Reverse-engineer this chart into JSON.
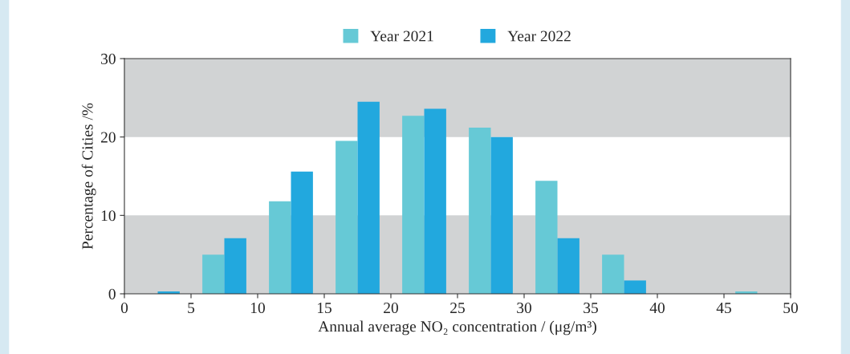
{
  "chart_data": {
    "type": "bar",
    "xlabel": "Annual average NO₂ concentration / (μg/m³)",
    "ylabel": "Percentage of Cities /%",
    "x": [
      2.5,
      7.5,
      12.5,
      17.5,
      22.5,
      27.5,
      32.5,
      37.5,
      42.5,
      47.5
    ],
    "series": [
      {
        "name": "Year 2021",
        "color": "#66c9d6",
        "values": [
          0,
          5.0,
          11.8,
          19.5,
          22.7,
          21.2,
          14.4,
          5.0,
          0,
          0.3
        ]
      },
      {
        "name": "Year 2022",
        "color": "#22a8de",
        "values": [
          0.3,
          7.1,
          15.6,
          24.5,
          23.6,
          20.0,
          7.1,
          1.7,
          0,
          0
        ]
      }
    ],
    "xlim": [
      0,
      50
    ],
    "xticks": [
      0,
      5,
      10,
      15,
      20,
      25,
      30,
      35,
      40,
      45,
      50
    ],
    "ylim": [
      0,
      30
    ],
    "yticks": [
      0,
      10,
      20,
      30
    ],
    "bands": [
      {
        "axis": "y",
        "from": 0,
        "to": 10,
        "color": "#d1d3d4"
      },
      {
        "axis": "y",
        "from": 20,
        "to": 30,
        "color": "#d1d3d4"
      }
    ],
    "legend": "top",
    "grid": false
  }
}
